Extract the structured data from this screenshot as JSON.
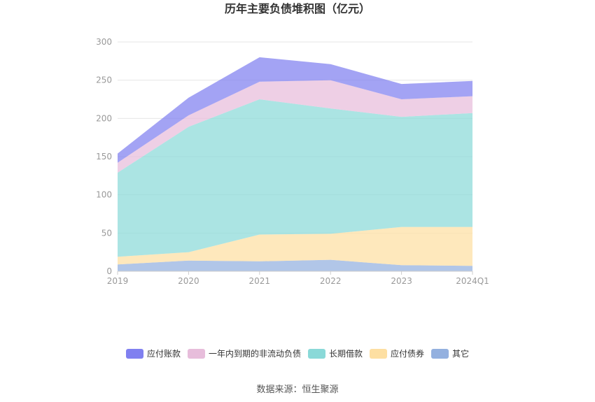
{
  "title": "历年主要负债堆积图（亿元）",
  "source": "数据来源：恒生聚源",
  "chart_data": {
    "type": "area",
    "stacked": true,
    "title": "历年主要负债堆积图（亿元）",
    "xlabel": "",
    "ylabel": "",
    "x": [
      "2019",
      "2020",
      "2021",
      "2022",
      "2023",
      "2024Q1"
    ],
    "ylim": [
      0,
      300
    ],
    "yticks": [
      0,
      50,
      100,
      150,
      200,
      250,
      300
    ],
    "grid": "horizontal",
    "legend_position": "bottom",
    "series": [
      {
        "name": "其它",
        "color": "#93b0df",
        "values": [
          9,
          14,
          13,
          15,
          8,
          7
        ]
      },
      {
        "name": "应付债券",
        "color": "#fddfa2",
        "values": [
          10,
          11,
          35,
          34,
          50,
          51
        ]
      },
      {
        "name": "长期借款",
        "color": "#8ad9d8",
        "values": [
          110,
          164,
          177,
          164,
          144,
          149
        ]
      },
      {
        "name": "一年内到期的非流动负债",
        "color": "#e7bddb",
        "values": [
          13,
          15,
          23,
          37,
          23,
          22
        ]
      },
      {
        "name": "应付账款",
        "color": "#8080f0",
        "values": [
          12,
          23,
          32,
          21,
          20,
          20
        ]
      }
    ],
    "legend_order": [
      "应付账款",
      "一年内到期的非流动负债",
      "长期借款",
      "应付债券",
      "其它"
    ]
  }
}
